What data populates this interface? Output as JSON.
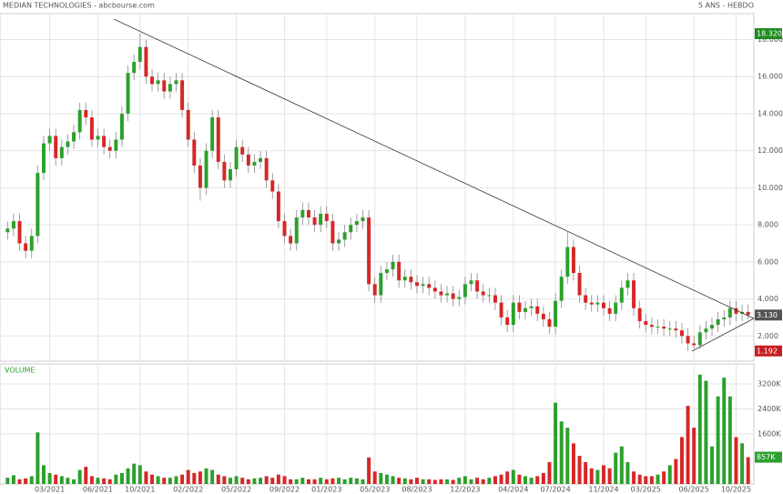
{
  "chart_data": {
    "type": "candlestick",
    "title": "MEDIAN TECHNOLOGIES - abcbourse.com",
    "subtitle": "5 ANS - HEBDO",
    "volume_label": "VOLUME",
    "up_color": "#2ca02c",
    "down_color": "#d62728",
    "wick_color": "#888888",
    "categories": [
      null,
      null,
      null,
      null,
      null,
      null,
      null,
      "03/2021",
      null,
      null,
      null,
      null,
      null,
      null,
      null,
      "06/2021",
      null,
      null,
      null,
      null,
      null,
      null,
      "10/2021",
      null,
      null,
      null,
      null,
      null,
      null,
      null,
      "02/2022",
      null,
      null,
      null,
      null,
      null,
      null,
      null,
      "05/2022",
      null,
      null,
      null,
      null,
      null,
      null,
      null,
      "09/2022",
      null,
      null,
      null,
      null,
      null,
      null,
      "01/2023",
      null,
      null,
      null,
      null,
      null,
      null,
      null,
      "05/2023",
      null,
      null,
      null,
      null,
      null,
      null,
      "08/2023",
      null,
      null,
      null,
      null,
      null,
      null,
      null,
      "12/2023",
      null,
      null,
      null,
      null,
      null,
      null,
      null,
      "04/2024",
      null,
      null,
      null,
      null,
      null,
      null,
      "07/2024",
      null,
      null,
      null,
      null,
      null,
      null,
      null,
      "11/2024",
      null,
      null,
      null,
      null,
      null,
      null,
      "03/2025",
      null,
      null,
      null,
      null,
      null,
      null,
      null,
      "06/2025",
      null,
      null,
      null,
      null,
      null,
      null,
      "10/2025",
      null,
      null
    ],
    "open": [
      7.6,
      7.8,
      8.2,
      7.0,
      6.6,
      7.4,
      10.8,
      12.4,
      12.8,
      11.6,
      12.2,
      12.5,
      13.0,
      14.2,
      13.8,
      12.6,
      12.8,
      12.2,
      12.0,
      12.6,
      14.0,
      16.2,
      16.8,
      17.6,
      16.0,
      15.6,
      15.8,
      15.2,
      15.6,
      15.8,
      14.2,
      12.6,
      11.2,
      10.0,
      12.0,
      13.8,
      11.4,
      10.4,
      11.0,
      12.2,
      11.8,
      11.2,
      11.4,
      11.6,
      10.4,
      9.8,
      8.2,
      7.4,
      7.0,
      8.4,
      8.8,
      8.4,
      8.0,
      8.6,
      8.2,
      7.0,
      7.2,
      7.6,
      8.0,
      8.2,
      8.4,
      4.8,
      4.2,
      5.4,
      5.6,
      6.0,
      5.0,
      5.2,
      4.9,
      4.7,
      4.8,
      4.6,
      4.4,
      4.2,
      4.3,
      4.0,
      4.1,
      4.8,
      5.0,
      4.4,
      4.2,
      4.2,
      3.8,
      3.0,
      2.6,
      3.8,
      3.3,
      3.5,
      3.6,
      3.2,
      2.9,
      2.5,
      3.9,
      5.2,
      6.8,
      5.4,
      4.2,
      3.8,
      3.7,
      3.8,
      3.5,
      3.2,
      3.8,
      4.6,
      5.0,
      3.5,
      2.8,
      2.6,
      2.5,
      2.5,
      2.4,
      2.4,
      2.3,
      2.0,
      1.6,
      1.5,
      2.2,
      2.4,
      2.6,
      2.9,
      3.0,
      3.5,
      3.2,
      3.3
    ],
    "high": [
      8.2,
      8.6,
      8.6,
      7.4,
      7.8,
      11.2,
      12.8,
      13.2,
      13.2,
      12.6,
      12.9,
      13.4,
      14.6,
      14.6,
      14.2,
      13.2,
      13.2,
      12.6,
      13.0,
      14.4,
      16.6,
      17.2,
      18.32,
      18.0,
      16.4,
      16.2,
      16.2,
      16.0,
      16.2,
      16.2,
      14.6,
      13.0,
      11.6,
      12.4,
      14.2,
      14.2,
      11.8,
      11.4,
      12.6,
      12.6,
      12.2,
      11.8,
      12.0,
      12.0,
      10.8,
      10.2,
      8.6,
      7.8,
      8.8,
      9.2,
      9.2,
      8.8,
      9.0,
      9.0,
      8.6,
      7.6,
      8.0,
      8.4,
      8.6,
      8.8,
      8.8,
      5.2,
      5.8,
      6.0,
      6.4,
      6.4,
      5.6,
      5.6,
      5.3,
      5.2,
      5.2,
      5.0,
      4.8,
      4.7,
      4.7,
      4.5,
      5.2,
      5.4,
      5.4,
      4.8,
      4.6,
      4.6,
      4.2,
      3.4,
      4.2,
      4.2,
      3.9,
      4.0,
      4.0,
      3.6,
      3.3,
      4.3,
      5.6,
      7.6,
      7.2,
      5.8,
      4.6,
      4.2,
      4.2,
      4.2,
      3.9,
      4.2,
      5.0,
      5.4,
      5.4,
      3.9,
      3.2,
      3.0,
      2.9,
      2.9,
      2.8,
      2.8,
      2.7,
      2.4,
      2.0,
      2.6,
      2.8,
      3.0,
      3.3,
      3.4,
      3.9,
      3.9,
      3.7,
      3.7
    ],
    "low": [
      7.2,
      7.4,
      6.6,
      6.2,
      6.2,
      7.0,
      10.4,
      12.0,
      11.2,
      11.2,
      11.8,
      12.1,
      12.6,
      13.4,
      12.2,
      12.2,
      11.8,
      11.6,
      11.6,
      12.2,
      13.6,
      15.8,
      16.4,
      15.6,
      15.2,
      15.2,
      14.8,
      14.8,
      15.2,
      13.8,
      12.2,
      10.8,
      9.3,
      9.6,
      11.6,
      11.0,
      10.0,
      10.0,
      10.6,
      11.4,
      10.8,
      10.8,
      11.0,
      10.0,
      9.4,
      7.8,
      7.0,
      6.6,
      6.6,
      8.0,
      8.0,
      7.6,
      7.6,
      7.8,
      6.6,
      6.6,
      6.8,
      7.2,
      7.6,
      7.8,
      4.4,
      3.8,
      3.8,
      5.0,
      5.2,
      4.6,
      4.6,
      4.5,
      4.3,
      4.3,
      4.2,
      4.0,
      3.8,
      3.8,
      3.6,
      3.6,
      3.7,
      4.4,
      4.0,
      3.8,
      3.8,
      3.4,
      2.6,
      2.2,
      2.2,
      2.9,
      2.9,
      3.1,
      2.8,
      2.5,
      2.1,
      2.1,
      3.5,
      4.8,
      5.0,
      3.8,
      3.4,
      3.3,
      3.3,
      3.1,
      2.8,
      2.8,
      3.4,
      4.2,
      3.1,
      2.4,
      2.2,
      2.1,
      2.1,
      2.0,
      2.0,
      1.9,
      1.6,
      1.192,
      1.3,
      1.3,
      1.8,
      2.0,
      2.2,
      2.5,
      2.6,
      2.8,
      2.8,
      2.9
    ],
    "close": [
      7.8,
      8.2,
      7.0,
      6.6,
      7.4,
      10.8,
      12.4,
      12.8,
      11.6,
      12.2,
      12.5,
      13.0,
      14.2,
      13.8,
      12.6,
      12.8,
      12.2,
      12.0,
      12.6,
      14.0,
      16.2,
      16.8,
      17.6,
      16.0,
      15.6,
      15.8,
      15.2,
      15.6,
      15.8,
      14.2,
      12.6,
      11.2,
      10.0,
      12.0,
      13.8,
      11.4,
      10.4,
      11.0,
      12.2,
      11.8,
      11.2,
      11.4,
      11.6,
      10.4,
      9.8,
      8.2,
      7.4,
      7.0,
      8.4,
      8.8,
      8.4,
      8.0,
      8.6,
      8.2,
      7.0,
      7.2,
      7.6,
      8.0,
      8.2,
      8.4,
      4.8,
      4.2,
      5.4,
      5.6,
      6.0,
      5.0,
      5.2,
      4.9,
      4.7,
      4.8,
      4.6,
      4.4,
      4.2,
      4.3,
      4.0,
      4.1,
      4.8,
      5.0,
      4.4,
      4.2,
      4.2,
      3.8,
      3.0,
      2.6,
      3.8,
      3.3,
      3.5,
      3.6,
      3.2,
      2.9,
      2.5,
      3.9,
      5.2,
      6.8,
      5.4,
      4.2,
      3.8,
      3.7,
      3.8,
      3.5,
      3.2,
      3.8,
      4.6,
      5.0,
      3.5,
      2.8,
      2.6,
      2.5,
      2.5,
      2.4,
      2.4,
      2.3,
      2.0,
      1.6,
      1.5,
      2.2,
      2.4,
      2.6,
      2.9,
      3.0,
      3.5,
      3.2,
      3.3,
      3.13
    ],
    "volume": [
      200,
      280,
      150,
      180,
      250,
      1650,
      600,
      350,
      300,
      250,
      200,
      150,
      450,
      550,
      250,
      200,
      180,
      150,
      300,
      350,
      500,
      650,
      600,
      400,
      300,
      250,
      200,
      200,
      250,
      300,
      450,
      350,
      400,
      500,
      450,
      300,
      250,
      200,
      250,
      200,
      150,
      180,
      200,
      250,
      200,
      300,
      250,
      150,
      150,
      200,
      150,
      150,
      200,
      150,
      180,
      200,
      150,
      200,
      180,
      150,
      850,
      400,
      350,
      300,
      250,
      200,
      180,
      150,
      200,
      150,
      150,
      130,
      150,
      150,
      130,
      200,
      250,
      150,
      200,
      150,
      200,
      250,
      300,
      400,
      450,
      300,
      250,
      200,
      250,
      350,
      700,
      2600,
      2000,
      1800,
      1300,
      900,
      700,
      500,
      450,
      600,
      500,
      1000,
      1200,
      700,
      400,
      300,
      250,
      250,
      300,
      400,
      600,
      800,
      1500,
      2500,
      1800,
      3500,
      3300,
      1200,
      2800,
      3400,
      2800,
      1500,
      1300,
      857
    ],
    "ylim": [
      0.64,
      19.4
    ],
    "yticks": [
      {
        "value": 2,
        "label": "2.000"
      },
      {
        "value": 4,
        "label": "4.000"
      },
      {
        "value": 6,
        "label": "6.000"
      },
      {
        "value": 8,
        "label": "8.000"
      },
      {
        "value": 10,
        "label": "10.000"
      },
      {
        "value": 12,
        "label": "12.000"
      },
      {
        "value": 14,
        "label": "14.000"
      },
      {
        "value": 16,
        "label": "16.000"
      },
      {
        "value": 18,
        "label": "18.000"
      }
    ],
    "volume_ylim": [
      0,
      3840
    ],
    "volume_yticks": [
      {
        "value": 1600,
        "label": "1600K"
      },
      {
        "value": 2400,
        "label": "2400K"
      },
      {
        "value": 3200,
        "label": "3200K"
      }
    ],
    "price_markers": [
      {
        "value": 18.32,
        "label": "18.320",
        "color": "#1e8c1e"
      },
      {
        "value": 3.13,
        "label": "3.130",
        "color": "#555555"
      },
      {
        "value": 1.192,
        "label": "1.192",
        "color": "#c81e1e"
      }
    ],
    "volume_marker": {
      "value": 857,
      "label": "857K",
      "color": "#2ca02c"
    },
    "grid": true
  }
}
